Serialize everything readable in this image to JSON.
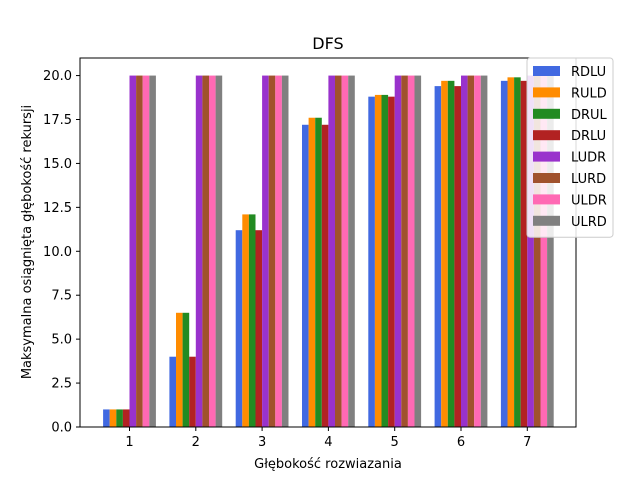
{
  "chart_data": {
    "type": "bar",
    "title": "DFS",
    "xlabel": "Głębokość rozwiazania",
    "ylabel": "Maksymalna osiągnięta głębokość rekursji",
    "categories": [
      "1",
      "2",
      "3",
      "4",
      "5",
      "6",
      "7"
    ],
    "ylim": [
      0,
      21
    ],
    "yticks": [
      "0.0",
      "2.5",
      "5.0",
      "7.5",
      "10.0",
      "12.5",
      "15.0",
      "17.5",
      "20.0"
    ],
    "legend_position": "top-right",
    "grid": false,
    "series": [
      {
        "name": "RDLU",
        "color": "#4169e1",
        "values": [
          1.0,
          4.0,
          11.2,
          17.2,
          18.8,
          19.4,
          19.7
        ]
      },
      {
        "name": "RULD",
        "color": "#ff8c00",
        "values": [
          1.0,
          6.5,
          12.1,
          17.6,
          18.9,
          19.7,
          19.9
        ]
      },
      {
        "name": "DRUL",
        "color": "#228b22",
        "values": [
          1.0,
          6.5,
          12.1,
          17.6,
          18.9,
          19.7,
          19.9
        ]
      },
      {
        "name": "DRLU",
        "color": "#b22222",
        "values": [
          1.0,
          4.0,
          11.2,
          17.2,
          18.8,
          19.4,
          19.7
        ]
      },
      {
        "name": "LUDR",
        "color": "#9932cc",
        "values": [
          20.0,
          20.0,
          20.0,
          20.0,
          20.0,
          20.0,
          20.0
        ]
      },
      {
        "name": "LURD",
        "color": "#a0522d",
        "values": [
          20.0,
          20.0,
          20.0,
          20.0,
          20.0,
          20.0,
          20.0
        ]
      },
      {
        "name": "ULDR",
        "color": "#ff69b4",
        "values": [
          20.0,
          20.0,
          20.0,
          20.0,
          20.0,
          20.0,
          20.0
        ]
      },
      {
        "name": "ULRD",
        "color": "#808080",
        "values": [
          20.0,
          20.0,
          20.0,
          20.0,
          20.0,
          20.0,
          20.0
        ]
      }
    ]
  }
}
